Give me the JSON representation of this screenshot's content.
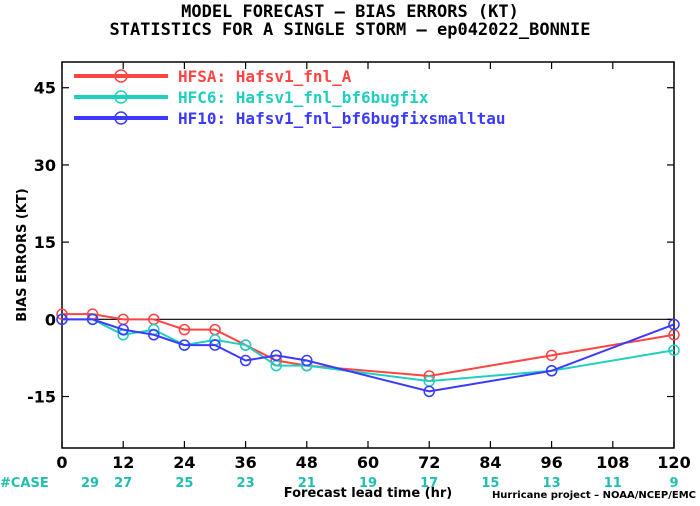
{
  "title_line1": "MODEL FORECAST – BIAS ERRORS (KT)",
  "title_line2": "STATISTICS FOR A SINGLE STORM – ep042022_BONNIE",
  "credit": "Hurricane project – NOAA/NCEP/EMC",
  "case_label": "#CASE",
  "chart_data": {
    "type": "line",
    "xlabel": "Forecast lead time (hr)",
    "ylabel": "BIAS ERRORS (KT)",
    "xlim": [
      0,
      120
    ],
    "ylim": [
      -25,
      50
    ],
    "xticks": [
      0,
      12,
      24,
      36,
      48,
      60,
      72,
      84,
      96,
      108,
      120
    ],
    "yticks": [
      -15,
      0,
      15,
      30,
      45
    ],
    "cases": [
      29,
      27,
      25,
      23,
      21,
      19,
      17,
      15,
      13,
      11,
      9
    ],
    "legend_position": "top-left",
    "series": [
      {
        "name": "HFSA: Hafsv1_fnl_A",
        "color": "#ff4444",
        "x": [
          0,
          6,
          12,
          18,
          24,
          30,
          36,
          42,
          48,
          72,
          96,
          120
        ],
        "y": [
          1,
          1,
          0,
          0,
          -2,
          -2,
          -5,
          -8,
          -9,
          -11,
          -7,
          -3
        ]
      },
      {
        "name": "HFC6: Hafsv1_fnl_bf6bugfix",
        "color": "#1fcfbf",
        "x": [
          0,
          6,
          12,
          18,
          24,
          30,
          36,
          42,
          48,
          72,
          96,
          120
        ],
        "y": [
          0,
          0,
          -3,
          -2,
          -5,
          -4,
          -5,
          -9,
          -9,
          -12,
          -10,
          -6
        ]
      },
      {
        "name": "HF10: Hafsv1_fnl_bf6bugfixsmalltau",
        "color": "#3b3bff",
        "x": [
          0,
          6,
          12,
          18,
          24,
          30,
          36,
          42,
          48,
          72,
          96,
          120
        ],
        "y": [
          0,
          0,
          -2,
          -3,
          -5,
          -5,
          -8,
          -7,
          -8,
          -14,
          -10,
          -1
        ]
      }
    ]
  }
}
